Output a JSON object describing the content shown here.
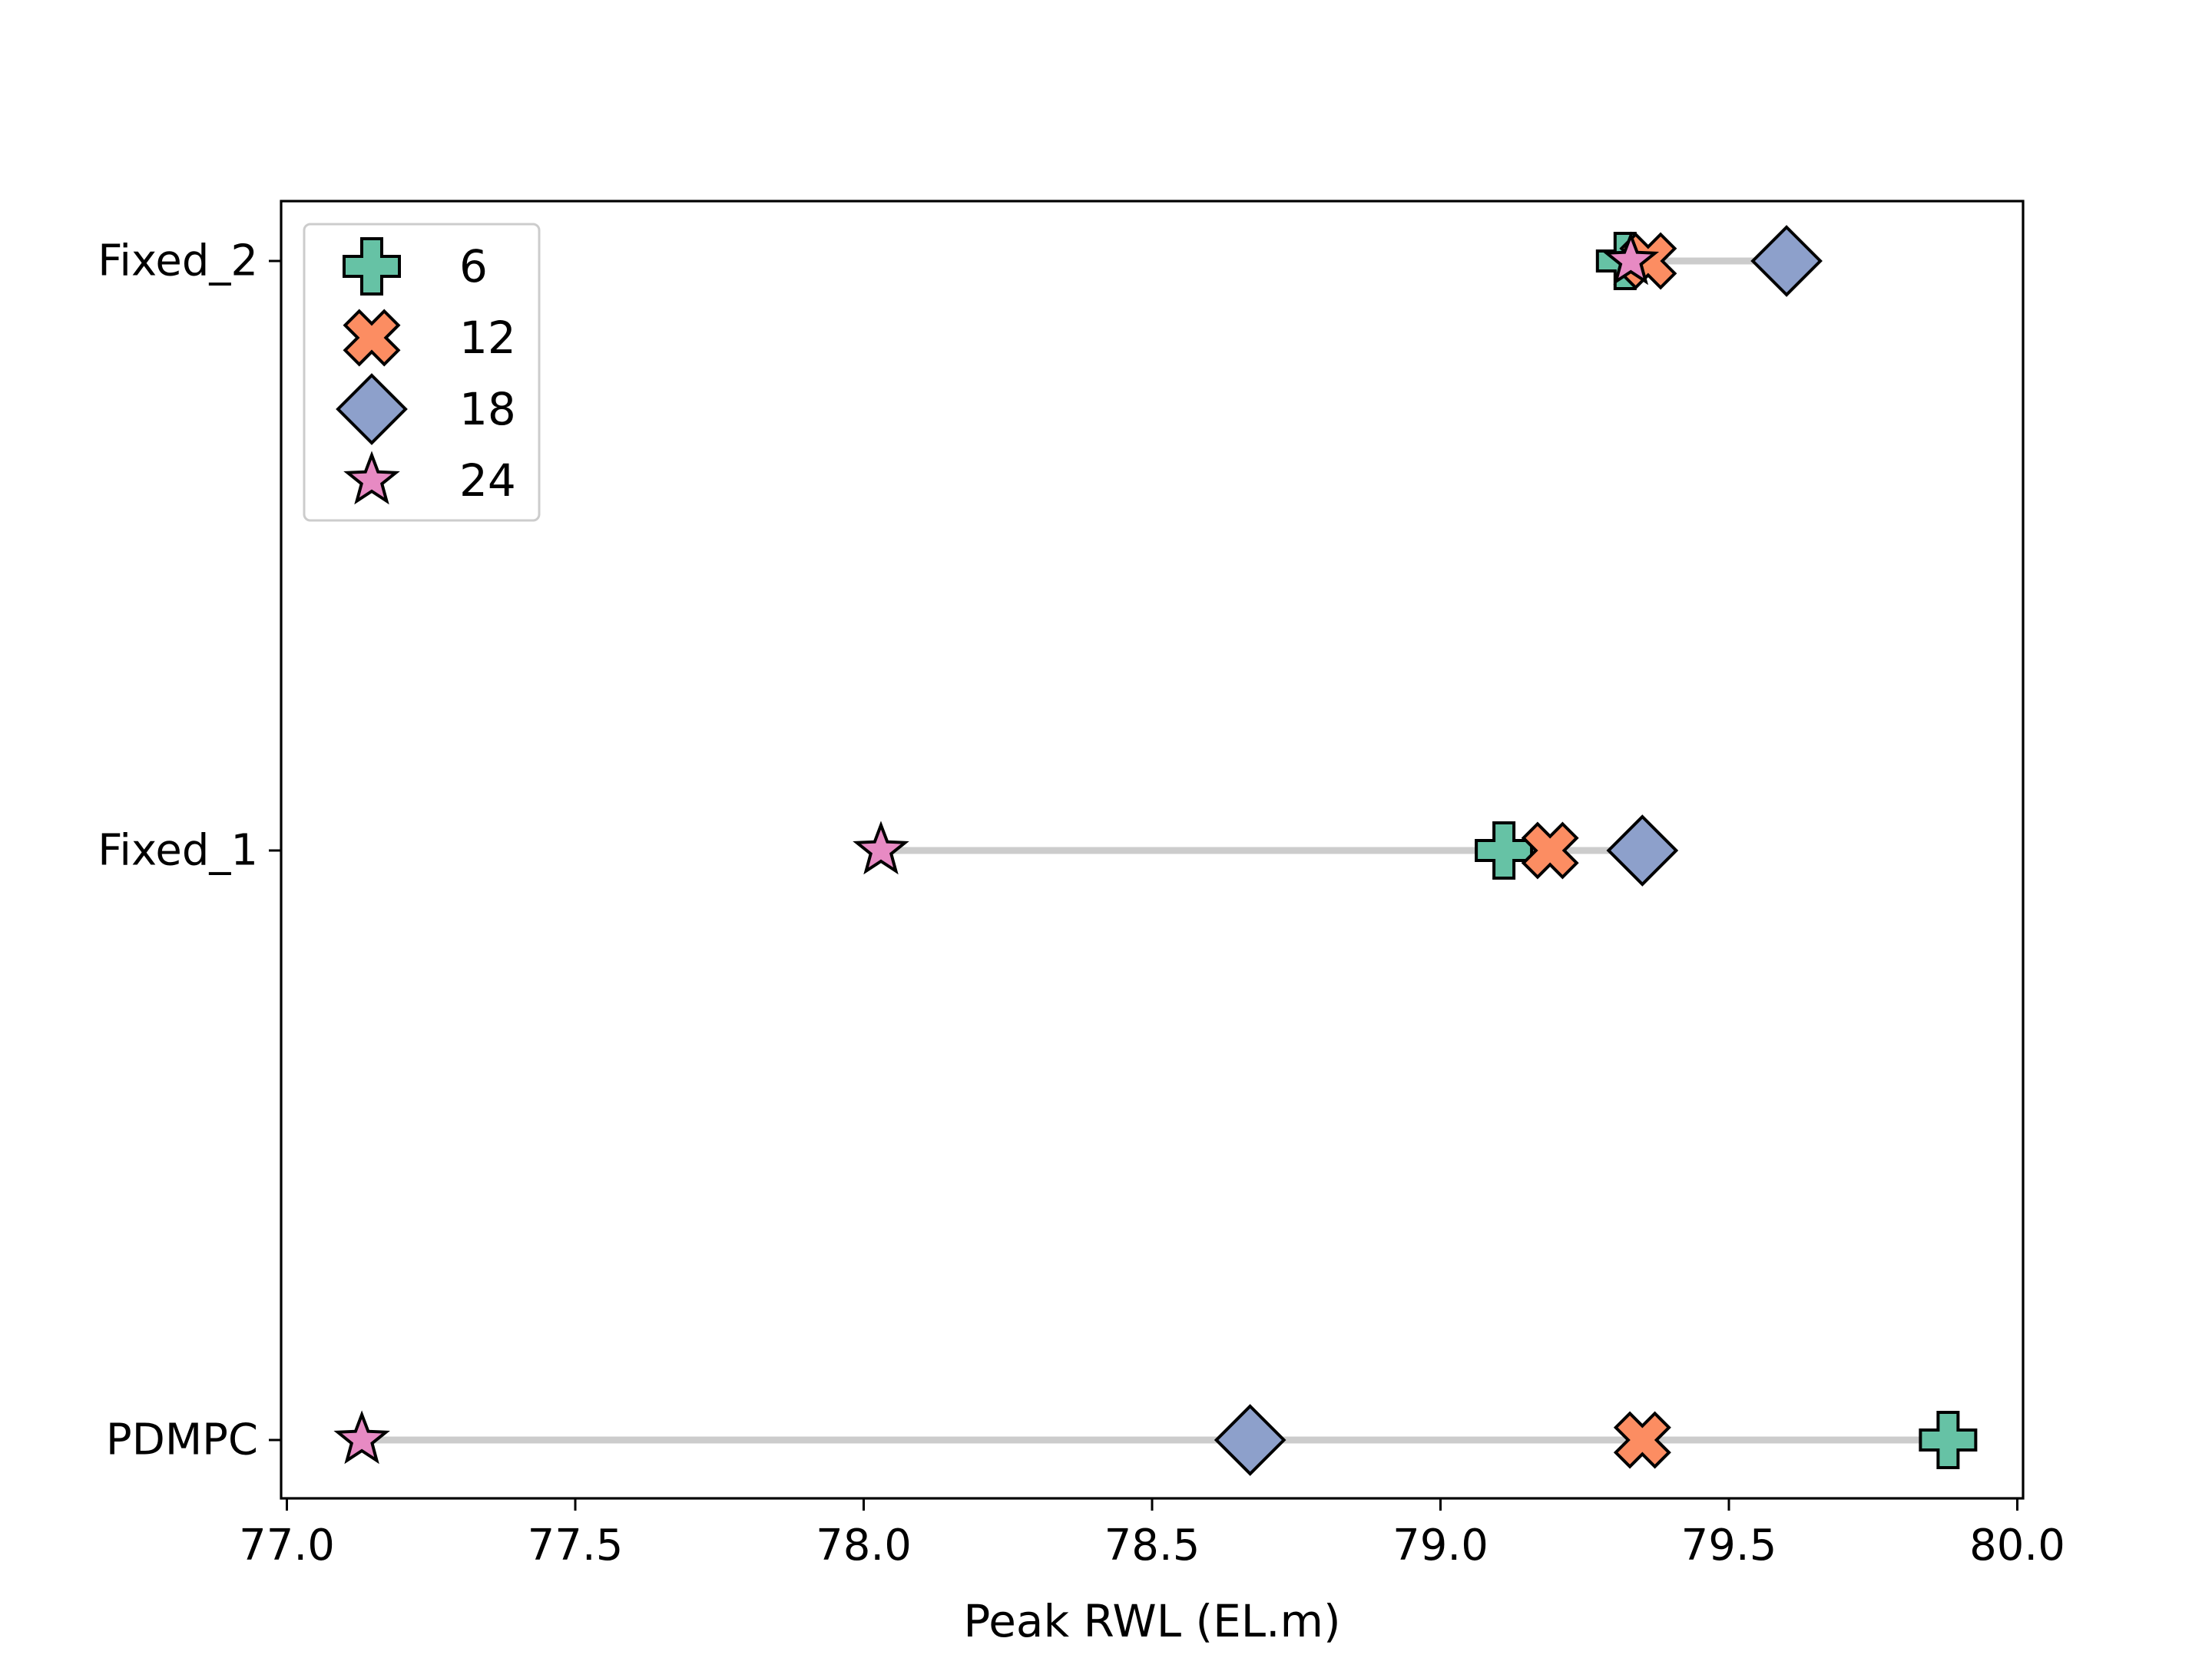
{
  "chart_data": {
    "type": "scatter",
    "title": "",
    "xlabel": "Peak RWL (EL.m)",
    "ylabel": "",
    "xlim": [
      76.99,
      80.01
    ],
    "xticks": [
      77.0,
      77.5,
      78.0,
      78.5,
      79.0,
      79.5,
      80.0
    ],
    "xtick_labels": [
      "77.0",
      "77.5",
      "78.0",
      "78.5",
      "79.0",
      "79.5",
      "80.0"
    ],
    "categories": [
      "Fixed_2",
      "Fixed_1",
      "PDMPC"
    ],
    "grid": false,
    "legend": {
      "placement": "upper left"
    },
    "range_line_color": "#cccccc",
    "series": [
      {
        "name": "6",
        "marker": "plus",
        "color": "#66c2a5",
        "values": [
          79.32,
          79.11,
          79.88
        ]
      },
      {
        "name": "12",
        "marker": "x",
        "color": "#fc8d62",
        "values": [
          79.36,
          79.19,
          79.35
        ]
      },
      {
        "name": "18",
        "marker": "diamond",
        "color": "#8da0cb",
        "values": [
          79.6,
          79.35,
          78.67
        ]
      },
      {
        "name": "24",
        "marker": "star",
        "color": "#e78ac3",
        "values": [
          79.33,
          78.03,
          77.13
        ]
      }
    ]
  }
}
